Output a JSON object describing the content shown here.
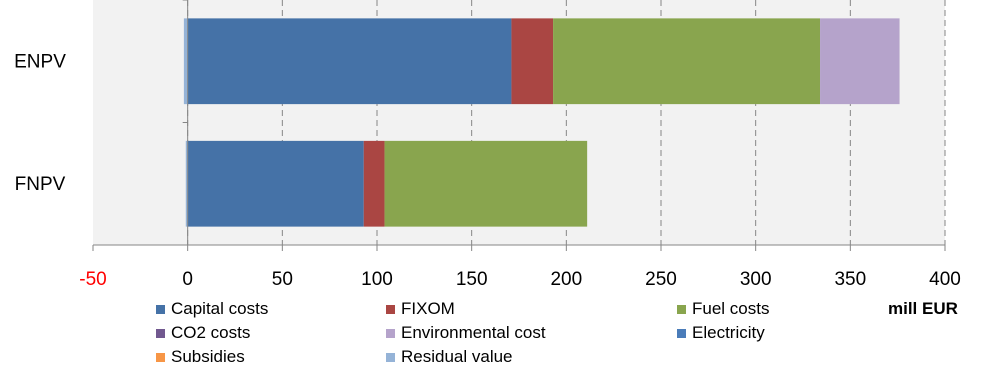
{
  "chart_data": {
    "type": "bar",
    "orientation": "horizontal",
    "stacked": true,
    "categories": [
      "ENPV",
      "FNPV"
    ],
    "series": [
      {
        "name": "Capital costs",
        "color": "#4572A7",
        "values": [
          171,
          93
        ]
      },
      {
        "name": "FIXOM",
        "color": "#AA4643",
        "values": [
          22,
          11
        ]
      },
      {
        "name": "Fuel costs",
        "color": "#89A54E",
        "values": [
          141,
          107
        ]
      },
      {
        "name": "CO2 costs",
        "color": "#71588F",
        "values": [
          0,
          0
        ]
      },
      {
        "name": "Environmental cost",
        "color": "#B5A3CB",
        "values": [
          42,
          0
        ]
      },
      {
        "name": "Electricity",
        "color": "#4A7CB9",
        "values": [
          0,
          0
        ]
      },
      {
        "name": "Subsidies",
        "color": "#F79646",
        "values": [
          0,
          0
        ]
      },
      {
        "name": "Residual value",
        "color": "#95B3D7",
        "values": [
          -2,
          -1
        ]
      }
    ],
    "xlim": [
      -50,
      400
    ],
    "xticks": [
      "-50",
      "0",
      "50",
      "100",
      "150",
      "200",
      "250",
      "300",
      "350",
      "400"
    ],
    "negative_tick_color": "#FF0000",
    "xlabel": "mill EUR",
    "grid": "vertical dashed",
    "legend_position": "bottom"
  }
}
